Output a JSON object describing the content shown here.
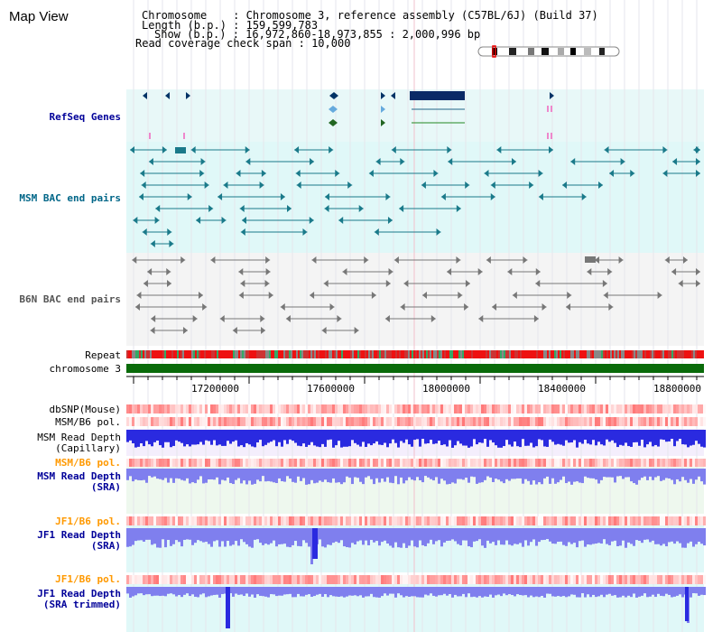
{
  "page": {
    "title": "Map View"
  },
  "header": {
    "lines": [
      {
        "label": "Chromosome",
        "value": "Chromosome 3, reference assembly (C57BL/6J) (Build 37)"
      },
      {
        "label": "Length (b.p.)",
        "value": "159,599,783"
      },
      {
        "label": "Show (b.p.)",
        "value": "16,972,860-18,973,855 : 2,000,996 bp"
      },
      {
        "label": "Read coverage check span",
        "value": "10,000"
      }
    ]
  },
  "tracks": {
    "refseq": {
      "label": "RefSeq Genes"
    },
    "msm_bac": {
      "label": "MSM BAC end pairs"
    },
    "b6n_bac": {
      "label": "B6N BAC end pairs"
    },
    "repeat": {
      "label": "Repeat"
    },
    "chromosome": {
      "label": "chromosome 3"
    },
    "dbsnp": {
      "label": "dbSNP(Mouse)"
    },
    "msm_b6_pol_1": {
      "label": "MSM/B6 pol."
    },
    "msm_depth_cap": {
      "label": "MSM Read Depth",
      "sub": "(Capillary)"
    },
    "msm_b6_pol_2": {
      "label": "MSM/B6 pol."
    },
    "msm_depth_sra": {
      "label": "MSM Read Depth",
      "sub": "(SRA)"
    },
    "jf1_b6_pol_1": {
      "label": "JF1/B6 pol."
    },
    "jf1_depth_sra": {
      "label": "JF1 Read Depth",
      "sub": "(SRA)"
    },
    "jf1_b6_pol_2": {
      "label": "JF1/B6 pol."
    },
    "jf1_depth_trim": {
      "label": "JF1 Read Depth",
      "sub": "(SRA trimmed)"
    }
  },
  "ruler": {
    "ticks": [
      "17200000",
      "17600000",
      "18000000",
      "18400000",
      "18800000"
    ]
  },
  "colors": {
    "refseq_bg": "#e8f8f8",
    "teal_bg": "#e0f8f8",
    "gray_bg": "#f4f4f4",
    "repeat_red": "#ee1111",
    "chromosome_green": "#0a6b0a",
    "depth_blue": "#2a2ae0",
    "depth_light_blue": "#7f7fee",
    "label_navy": "#000099",
    "label_orange": "#ff9900",
    "label_teal": "#003399"
  }
}
